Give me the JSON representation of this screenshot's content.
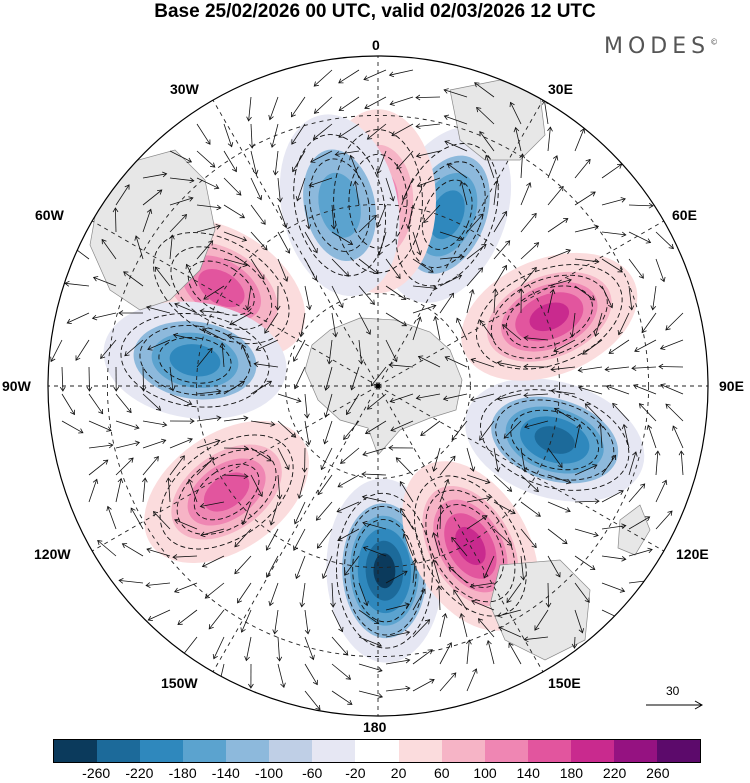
{
  "title": "Base 25/02/2026 00 UTC, valid 02/03/2026 12 UTC",
  "brand": "MODES",
  "brand_mark": "©",
  "longitude_labels": {
    "deg_0": "0",
    "deg_30e": "30E",
    "deg_60e": "60E",
    "deg_90e": "90E",
    "deg_120e": "120E",
    "deg_150e": "150E",
    "deg_180": "180",
    "deg_150w": "150W",
    "deg_120w": "120W",
    "deg_90w": "90W",
    "deg_60w": "60W",
    "deg_30w": "30W"
  },
  "reference_vector": "30",
  "colorbar": {
    "colors": [
      "#0b3a5c",
      "#1c6a9a",
      "#2f88bd",
      "#5ba3cf",
      "#8db9dc",
      "#bfcfe6",
      "#e6e7f3",
      "#ffffff",
      "#fbdcdd",
      "#f6b4c6",
      "#ef86b3",
      "#e2559e",
      "#c92a8e",
      "#951281",
      "#5c0a6b"
    ],
    "ticks": [
      "-260",
      "-220",
      "-180",
      "-140",
      "-100",
      "-60",
      "-20",
      "20",
      "60",
      "100",
      "140",
      "180",
      "220",
      "260"
    ]
  },
  "anomaly_centers": [
    {
      "name": "high-1",
      "lon": -58,
      "rings": 3
    },
    {
      "name": "low-1",
      "lon": -82,
      "rings": 3
    },
    {
      "name": "high-2",
      "lon": -125,
      "rings": 3
    },
    {
      "name": "low-2",
      "lon": 178,
      "rings": 5
    },
    {
      "name": "high-3",
      "lon": 150,
      "rings": 4
    },
    {
      "name": "low-3",
      "lon": 107,
      "rings": 4
    },
    {
      "name": "high-4",
      "lon": 68,
      "rings": 4
    },
    {
      "name": "low-4",
      "lon": 22,
      "rings": 3
    },
    {
      "name": "high-5",
      "lon": 0,
      "rings": 2
    },
    {
      "name": "low-5",
      "lon": -12,
      "rings": 2
    }
  ]
}
